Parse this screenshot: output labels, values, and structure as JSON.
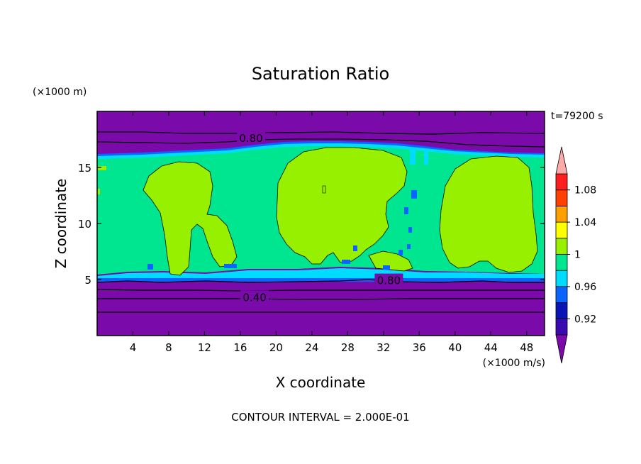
{
  "chart_data": {
    "type": "contour",
    "title": "Saturation Ratio",
    "xlabel": "X coordinate",
    "ylabel": "Z coordinate",
    "x_unit": "(×1000 m/s)",
    "y_unit": "(×1000 m)",
    "time_label": "t=79200 s",
    "footer": "CONTOUR INTERVAL = 2.000E-01",
    "xlim": [
      0,
      50
    ],
    "ylim": [
      0,
      20
    ],
    "x_ticks": [
      4,
      8,
      12,
      16,
      20,
      24,
      28,
      32,
      36,
      40,
      44,
      48
    ],
    "y_ticks": [
      5,
      10,
      15
    ],
    "contour_lines": [
      {
        "level": 0.4,
        "label": "0.40",
        "label_x": 17.6,
        "label_z": 3.4
      },
      {
        "level": 0.8,
        "label": "0.80",
        "label_x": 17.2,
        "label_z": 17.6
      },
      {
        "level": 0.8,
        "label": "0.80",
        "label_x": 32.6,
        "label_z": 4.9
      }
    ],
    "colorbar": {
      "levels": [
        0.92,
        0.94,
        0.96,
        0.98,
        1.0,
        1.02,
        1.04,
        1.06,
        1.08,
        1.1
      ],
      "tick_labels": [
        "0.92",
        "0.96",
        "1",
        "1.04",
        "1.08"
      ],
      "tick_values": [
        0.92,
        0.96,
        1.0,
        1.04,
        1.08
      ],
      "colors": [
        "#7a0aaa",
        "#3a0ab0",
        "#0a14b4",
        "#0a64ff",
        "#00dcff",
        "#00e690",
        "#96f000",
        "#ffff00",
        "#ffa000",
        "#ff4000",
        "#ff1e1e",
        "#ffaaaa"
      ],
      "extend": "both"
    },
    "regions": [
      {
        "name": "lower-dry-layer",
        "z": [
          0,
          5
        ],
        "value_range": "< 0.92"
      },
      {
        "name": "upper-dry-layer",
        "z": [
          16,
          20
        ],
        "value_range": "< 0.92"
      },
      {
        "name": "cloud-layer",
        "z": [
          5,
          16
        ],
        "value_range": "0.98 - 1.02"
      }
    ]
  }
}
